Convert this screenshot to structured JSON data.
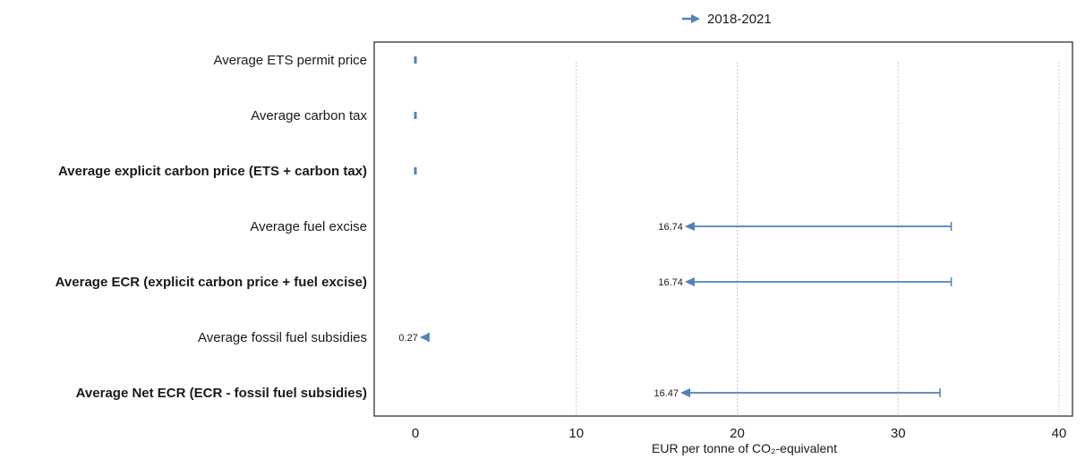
{
  "chart_data": {
    "type": "arrow-range",
    "title": "",
    "xlabel": "EUR per tonne of CO₂-equivalent",
    "ylabel": "",
    "xlim": [
      0,
      40
    ],
    "xticks": [
      0,
      10,
      20,
      30,
      40
    ],
    "grid": "vertical dotted",
    "legend": {
      "position": "top-center",
      "entries": [
        "2018-2021"
      ]
    },
    "series": [
      {
        "name": "2018-2021",
        "color": "#4f81bd",
        "points": [
          {
            "category": "Average ETS permit price",
            "bold": false,
            "from": 0,
            "to": 0,
            "label": ""
          },
          {
            "category": "Average carbon tax",
            "bold": false,
            "from": 0,
            "to": 0,
            "label": ""
          },
          {
            "category": "Average explicit carbon price (ETS + carbon tax)",
            "bold": true,
            "from": 0,
            "to": 0,
            "label": ""
          },
          {
            "category": "Average fuel excise",
            "bold": false,
            "from": 33.3,
            "to": 16.74,
            "label": "16.74"
          },
          {
            "category": "Average ECR (explicit carbon price + fuel excise)",
            "bold": true,
            "from": 33.3,
            "to": 16.74,
            "label": "16.74"
          },
          {
            "category": "Average fossil fuel subsidies",
            "bold": false,
            "from": 0.8,
            "to": 0.27,
            "label": "0.27"
          },
          {
            "category": "Average Net ECR (ECR - fossil fuel subsidies)",
            "bold": true,
            "from": 32.6,
            "to": 16.47,
            "label": "16.47"
          }
        ]
      }
    ]
  }
}
